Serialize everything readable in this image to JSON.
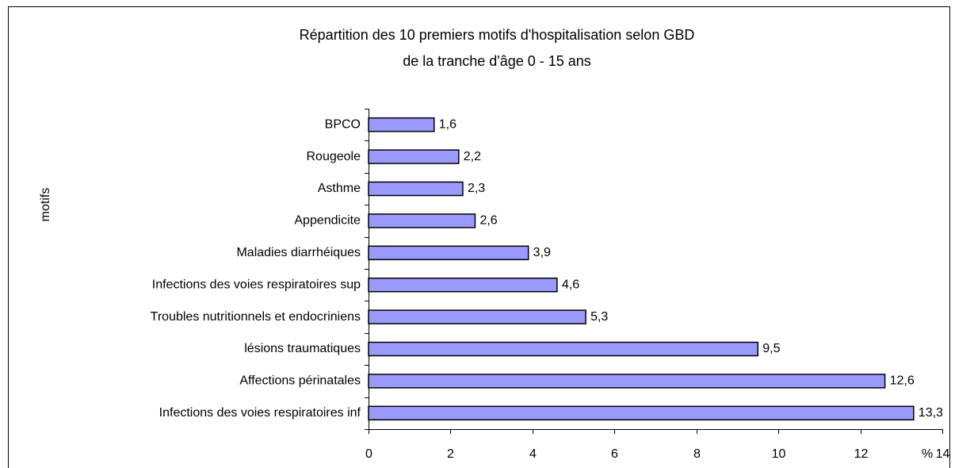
{
  "chart_data": {
    "type": "barh",
    "title": "Répartition des 10 premiers motifs d'hospitalisation selon GBD",
    "subtitle": "de la tranche d'âge  0 - 15 ans",
    "ylabel": "motifs",
    "xlabel": "%",
    "categories": [
      "BPCO",
      "Rougeole",
      "Asthme",
      "Appendicite",
      "Maladies diarrhéiques",
      "Infections des voies respiratoires sup",
      "Troubles nutritionnels et endocriniens",
      "lésions traumatiques",
      "Affections périnatales",
      "Infections des voies respiratoires inf"
    ],
    "values": [
      1.6,
      2.2,
      2.3,
      2.6,
      3.9,
      4.6,
      5.3,
      9.5,
      12.6,
      13.3
    ],
    "value_labels": [
      "1,6",
      "2,2",
      "2,3",
      "2,6",
      "3,9",
      "4,6",
      "5,3",
      "9,5",
      "12,6",
      "13,3"
    ],
    "color": "#9999ff",
    "xlim": [
      0,
      14
    ],
    "xticks": [
      0,
      2,
      4,
      6,
      8,
      10,
      12,
      14
    ],
    "grid": false
  }
}
